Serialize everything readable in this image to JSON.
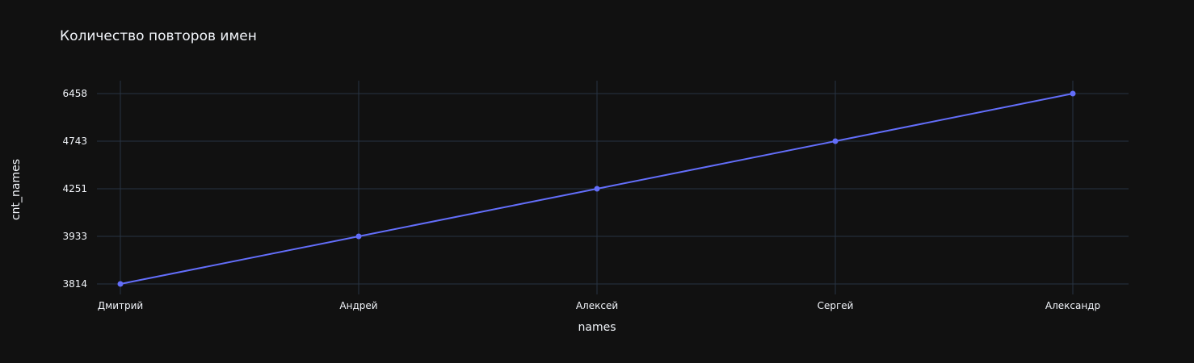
{
  "chart_data": {
    "type": "line",
    "title": "Количество повторов имен",
    "xlabel": "names",
    "ylabel": "cnt_names",
    "categories": [
      "Дмитрий",
      "Андрей",
      "Алексей",
      "Сергей",
      "Александр"
    ],
    "values": [
      3814,
      3933,
      4251,
      4743,
      6458
    ],
    "y_axis_type": "category",
    "y_tick_labels": [
      "3814",
      "3933",
      "4251",
      "4743",
      "6458"
    ],
    "markers": true,
    "grid": true,
    "legend": "none",
    "colors": {
      "background": "#111111",
      "series": "#636efa",
      "grid": "#283442",
      "text": "#f2f5fa"
    }
  }
}
